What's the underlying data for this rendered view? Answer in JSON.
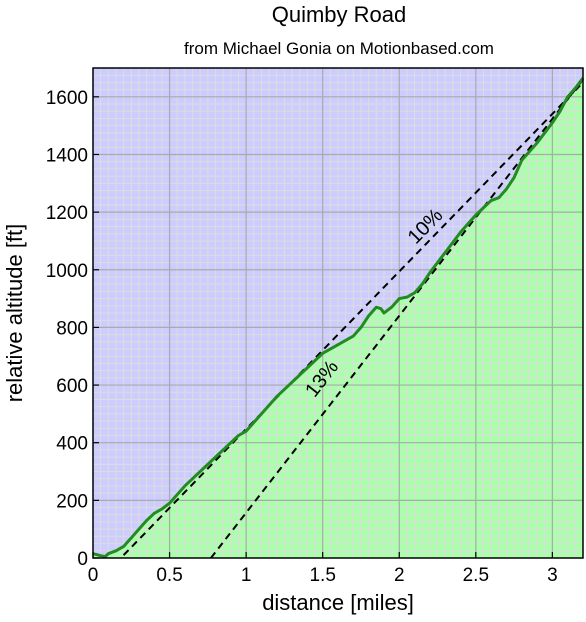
{
  "chart_data": {
    "type": "area",
    "title": "Quimby Road",
    "subtitle": "from Michael Gonia on Motionbased.com",
    "xlabel": "distance [miles]",
    "ylabel": "relative altitude [ft]",
    "xlim": [
      0,
      3.2
    ],
    "ylim": [
      0,
      1700
    ],
    "x_ticks": [
      0,
      0.5,
      1,
      1.5,
      2,
      2.5,
      3
    ],
    "x_tick_labels": [
      "0",
      "0.5",
      "1",
      "1.5",
      "2",
      "2.5",
      "3"
    ],
    "y_ticks": [
      0,
      200,
      400,
      600,
      800,
      1000,
      1200,
      1400,
      1600
    ],
    "y_tick_labels": [
      "0",
      "200",
      "400",
      "600",
      "800",
      "1000",
      "1200",
      "1400",
      "1600"
    ],
    "grid": true,
    "minor_grid": true,
    "colors": {
      "above_fill": "#ccccff",
      "below_fill": "#aaffaa",
      "profile_line": "#228b22",
      "grid_major": "#aaaaaa",
      "grid_minor": "#dddddd",
      "reference_line": "#000000"
    },
    "series": [
      {
        "x": [
          0,
          0.05,
          0.08,
          0.1,
          0.15,
          0.2,
          0.25,
          0.3,
          0.35,
          0.4,
          0.45,
          0.5,
          0.6,
          0.7,
          0.8,
          0.9,
          0.95,
          1.0,
          1.1,
          1.2,
          1.3,
          1.4,
          1.5,
          1.6,
          1.7,
          1.75,
          1.8,
          1.85,
          1.88,
          1.9,
          1.95,
          2.0,
          2.05,
          2.1,
          2.15,
          2.2,
          2.3,
          2.4,
          2.5,
          2.6,
          2.65,
          2.7,
          2.75,
          2.8,
          2.9,
          3.0,
          3.05,
          3.1,
          3.15,
          3.2
        ],
        "y": [
          15,
          8,
          5,
          15,
          25,
          40,
          70,
          100,
          130,
          155,
          170,
          190,
          250,
          300,
          350,
          400,
          425,
          440,
          500,
          560,
          610,
          660,
          710,
          740,
          770,
          800,
          840,
          870,
          865,
          850,
          870,
          900,
          905,
          920,
          950,
          990,
          1060,
          1130,
          1190,
          1240,
          1250,
          1280,
          1320,
          1380,
          1440,
          1510,
          1550,
          1600,
          1630,
          1665
        ]
      }
    ],
    "reference_lines": [
      {
        "label": "10%",
        "x": [
          0.2,
          3.2
        ],
        "y": [
          10,
          1650
        ]
      },
      {
        "label": "13%",
        "x": [
          0.77,
          3.2
        ],
        "y": [
          0,
          1660
        ]
      }
    ]
  }
}
